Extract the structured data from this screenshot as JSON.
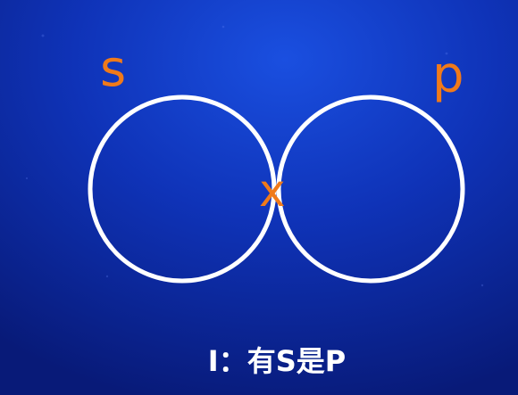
{
  "diagram": {
    "set_s_label": "s",
    "set_p_label": "p",
    "intersection_label": "x",
    "caption": "I：有S是P"
  },
  "colors": {
    "background_dark": "#0a1a6e",
    "background_mid": "#0d2bb0",
    "background_light": "#1747d6",
    "circle_stroke": "#ffffff",
    "label_color": "#f07a1a",
    "caption_color": "#ffffff"
  }
}
